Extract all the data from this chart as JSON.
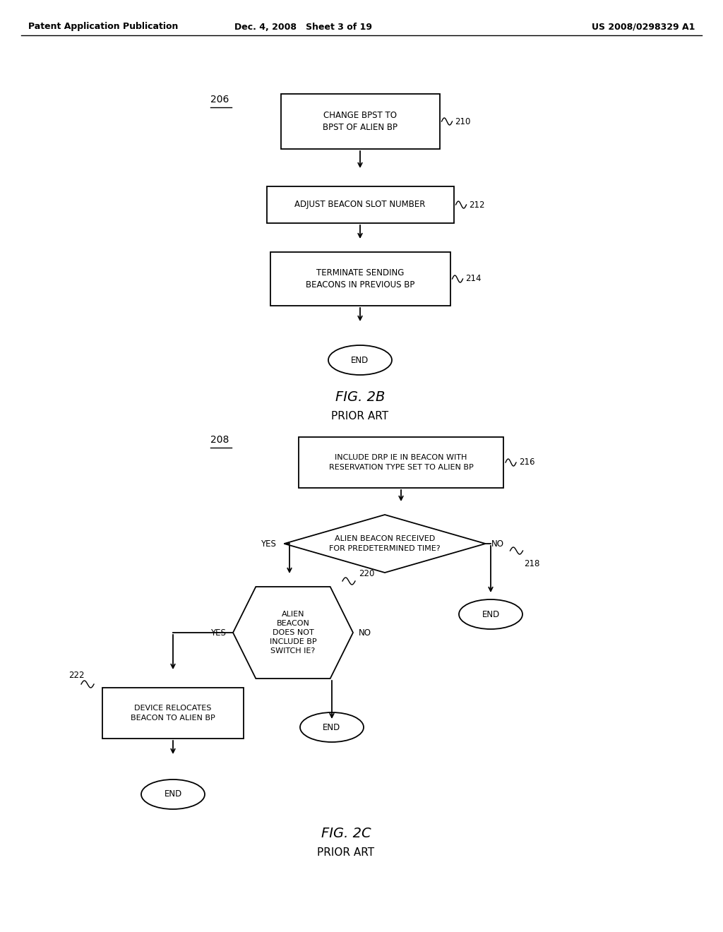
{
  "bg_color": "#ffffff",
  "header_left": "Patent Application Publication",
  "header_mid": "Dec. 4, 2008   Sheet 3 of 19",
  "header_right": "US 2008/0298329 A1",
  "line_color": "#000000",
  "text_color": "#000000"
}
